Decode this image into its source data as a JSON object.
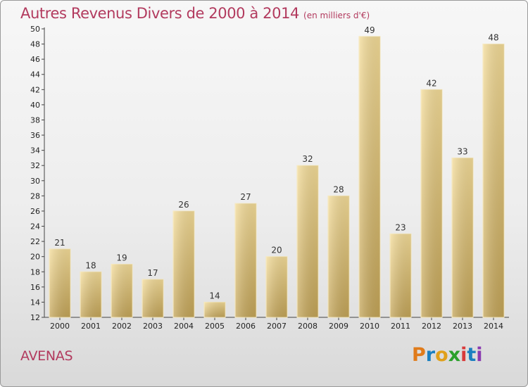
{
  "title": "Autres Revenus Divers de 2000 à 2014",
  "subtitle": "(en milliers d'€)",
  "place": "AVENAS",
  "brand": {
    "letters": [
      "P",
      "r",
      "o",
      "x",
      "i",
      "t",
      "i"
    ],
    "colors": [
      "#e07b1a",
      "#1a7fc0",
      "#e0a01a",
      "#2aa02a",
      "#d93a3a",
      "#1a7fc0",
      "#8a3ab0"
    ]
  },
  "chart_data": {
    "type": "bar",
    "categories": [
      "2000",
      "2001",
      "2002",
      "2003",
      "2004",
      "2005",
      "2006",
      "2007",
      "2008",
      "2009",
      "2010",
      "2011",
      "2012",
      "2013",
      "2014"
    ],
    "values": [
      21,
      18,
      19,
      17,
      26,
      14,
      27,
      20,
      32,
      28,
      49,
      23,
      42,
      33,
      48
    ],
    "ylim": [
      12,
      50
    ],
    "yticks": [
      12,
      14,
      16,
      18,
      20,
      22,
      24,
      26,
      28,
      30,
      32,
      34,
      36,
      38,
      40,
      42,
      44,
      46,
      48,
      50
    ],
    "grid": false,
    "bar_color": "#e9cf86"
  }
}
